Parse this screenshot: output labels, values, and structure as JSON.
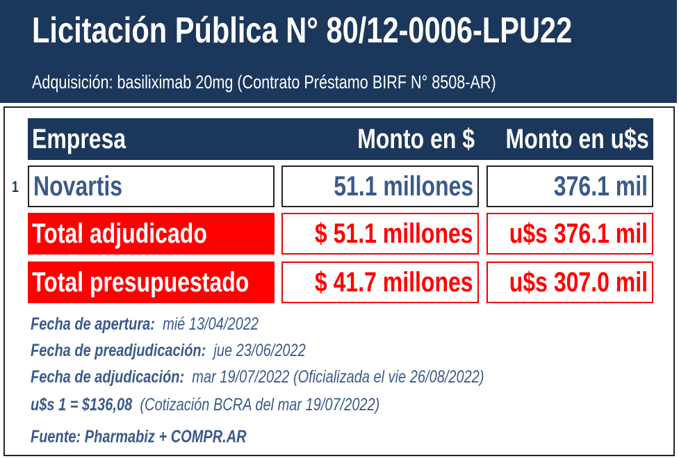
{
  "header": {
    "title": "Licitación Pública N° 80/12-0006-LPU22",
    "subtitle": "Adquisición: basiliximab 20mg (Contrato Préstamo BIRF N° 8508-AR)"
  },
  "table": {
    "columns": [
      "Empresa",
      "Monto en $",
      "Monto en u$s"
    ],
    "rows": [
      {
        "index": "1",
        "empresa": "Novartis",
        "monto_pesos": "51.1 millones",
        "monto_usd": "376.1 mil"
      }
    ],
    "total_adjudicado": {
      "label": "Total adjudicado",
      "pesos": "$ 51.1 millones",
      "usd": "u$s 376.1 mil"
    },
    "total_presupuestado": {
      "label": "Total presupuestado",
      "pesos": "$ 41.7 millones",
      "usd": "u$s 307.0 mil"
    }
  },
  "notes": [
    {
      "label": "Fecha de apertura:",
      "value": "mié 13/04/2022"
    },
    {
      "label": "Fecha de preadjudicación:",
      "value": "jue 23/06/2022"
    },
    {
      "label": "Fecha de adjudicación:",
      "value": "mar 19/07/2022 (Oficializada el vie 26/08/2022)"
    },
    {
      "label": "u$s 1 = $136,08",
      "value": "(Cotización BCRA del mar 19/07/2022)"
    },
    {
      "label": "Fuente: Pharmabiz + COMPR.AR",
      "value": ""
    }
  ],
  "colors": {
    "navy": "#1b375c",
    "text_blue": "#3b5a8b",
    "red": "#ff0000"
  }
}
